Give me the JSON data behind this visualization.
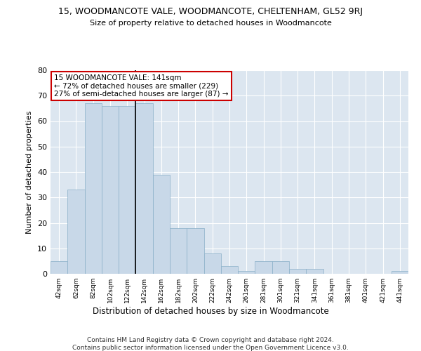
{
  "title": "15, WOODMANCOTE VALE, WOODMANCOTE, CHELTENHAM, GL52 9RJ",
  "subtitle": "Size of property relative to detached houses in Woodmancote",
  "xlabel": "Distribution of detached houses by size in Woodmancote",
  "ylabel": "Number of detached properties",
  "bar_color": "#c8d8e8",
  "bar_edge_color": "#8aafc8",
  "background_color": "#dce6f0",
  "categories": [
    "42sqm",
    "62sqm",
    "82sqm",
    "102sqm",
    "122sqm",
    "142sqm",
    "162sqm",
    "182sqm",
    "202sqm",
    "222sqm",
    "242sqm",
    "261sqm",
    "281sqm",
    "301sqm",
    "321sqm",
    "341sqm",
    "361sqm",
    "381sqm",
    "401sqm",
    "421sqm",
    "441sqm"
  ],
  "values": [
    5,
    33,
    67,
    66,
    66,
    67,
    39,
    18,
    18,
    8,
    3,
    1,
    5,
    5,
    2,
    2,
    0,
    0,
    0,
    0,
    1
  ],
  "ylim": [
    0,
    80
  ],
  "yticks": [
    0,
    10,
    20,
    30,
    40,
    50,
    60,
    70,
    80
  ],
  "annotation_text": "15 WOODMANCOTE VALE: 141sqm\n← 72% of detached houses are smaller (229)\n27% of semi-detached houses are larger (87) →",
  "annotation_box_color": "#ffffff",
  "annotation_border_color": "#cc0000",
  "footer_line1": "Contains HM Land Registry data © Crown copyright and database right 2024.",
  "footer_line2": "Contains public sector information licensed under the Open Government Licence v3.0."
}
